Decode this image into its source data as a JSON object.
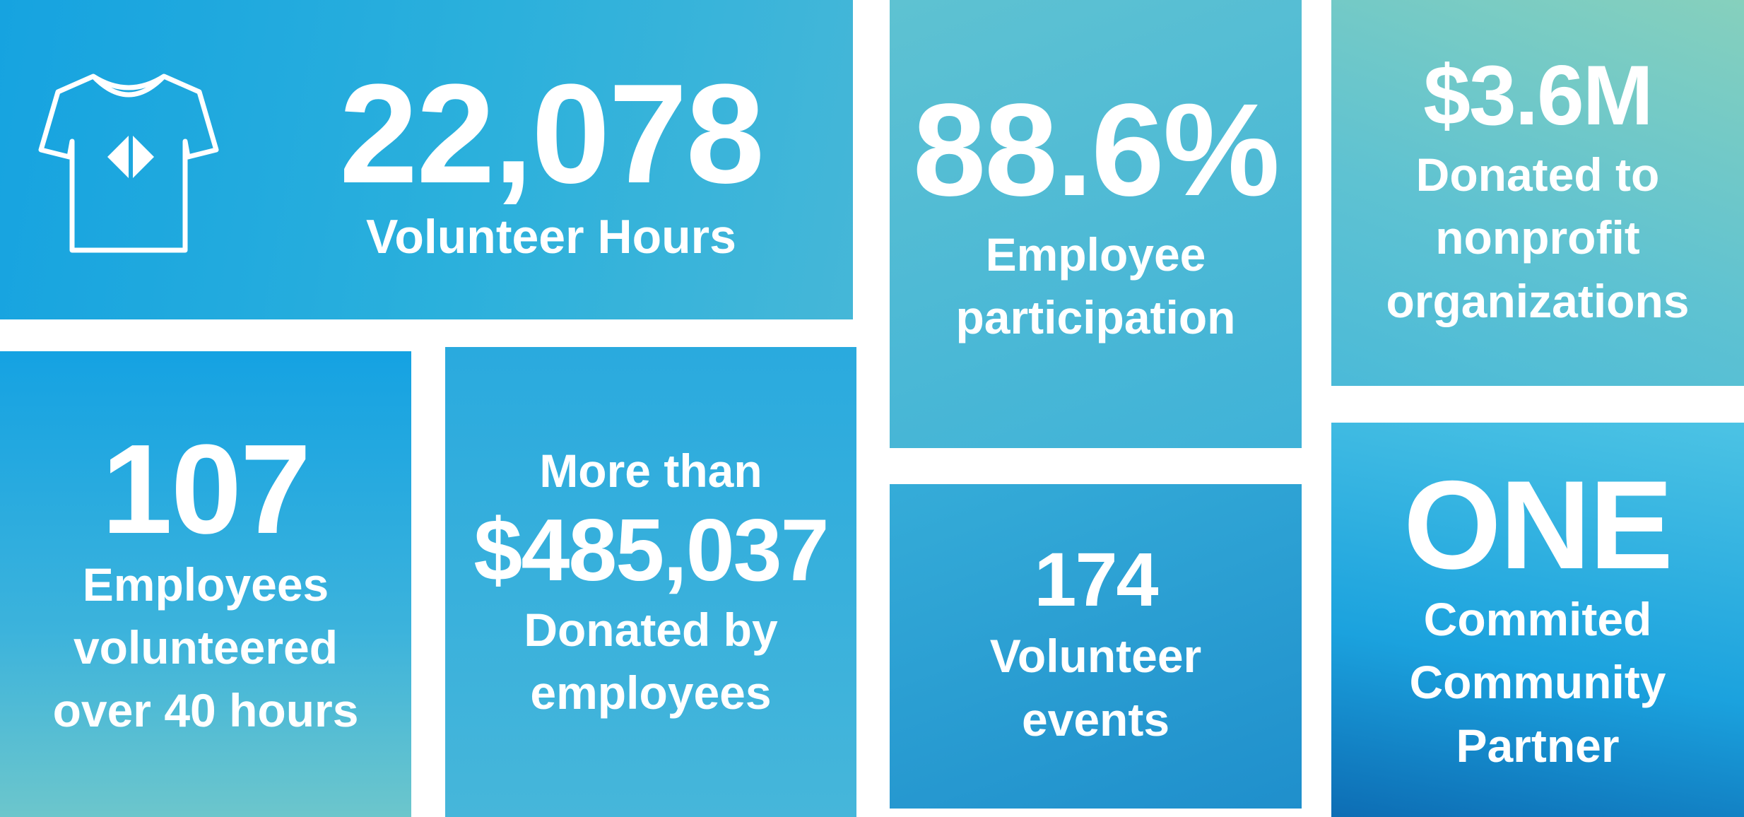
{
  "tiles": [
    {
      "value": "22,078",
      "label": [
        "Volunteer Hours"
      ]
    },
    {
      "value": "88.6%",
      "label": [
        "Employee",
        "participation"
      ]
    },
    {
      "value": "$3.6M",
      "label": [
        "Donated to",
        "nonprofit",
        "organizations"
      ]
    },
    {
      "value": "107",
      "label": [
        "Employees",
        "volunteered",
        "over 40 hours"
      ]
    },
    {
      "prefix": "More than",
      "value": "$485,037",
      "label": [
        "Donated by",
        "employees"
      ]
    },
    {
      "value": "174",
      "label": [
        "Volunteer",
        "events"
      ]
    },
    {
      "value": "ONE",
      "label": [
        "Commited",
        "Community",
        "Partner"
      ]
    }
  ]
}
